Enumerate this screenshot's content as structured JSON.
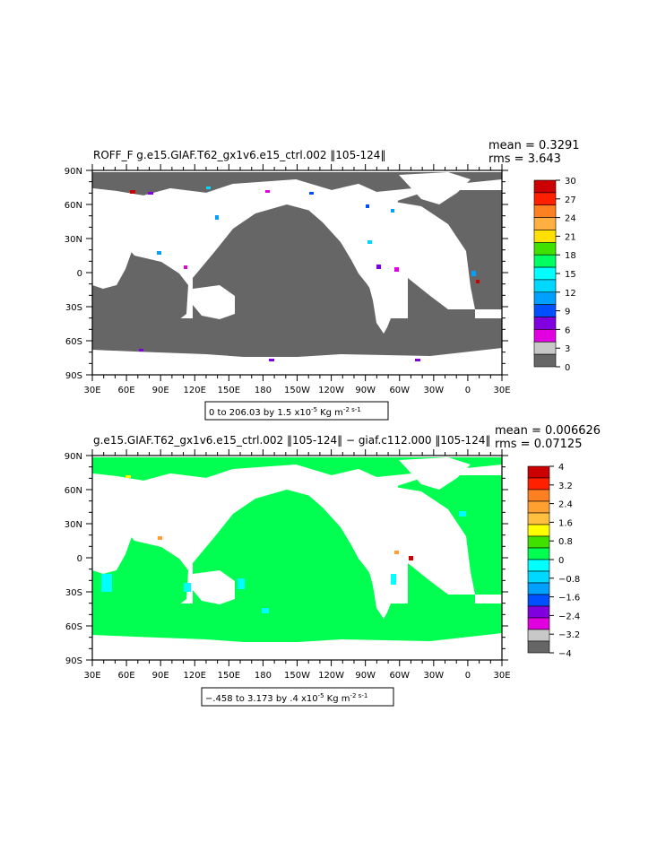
{
  "panels": [
    {
      "title": "ROFF_F g.e15.GIAF.T62_gx1v6.e15_ctrl.002 ‖105-124‖",
      "mean_label": "mean = 0.3291",
      "rms_label": "rms = 3.643",
      "range_label": "0 to 206.03 by 1.5 x10",
      "range_exp": "-5",
      "range_units": "Kg m",
      "range_units_exp": "-2 s-1",
      "ocean_color": "#666666",
      "colorbar": {
        "labels": [
          "30",
          "27",
          "24",
          "21",
          "18",
          "15",
          "12",
          "9",
          "6",
          "3",
          "0"
        ],
        "colors": [
          "#cc0000",
          "#ff2000",
          "#ff8020",
          "#ffb040",
          "#ffe000",
          "#40e000",
          "#00ff60",
          "#00ffff",
          "#00d8ff",
          "#00a0ff",
          "#0050ff",
          "#8000e0",
          "#e000e0",
          "#c8c8c8",
          "#666666"
        ]
      }
    },
    {
      "title": "g.e15.GIAF.T62_gx1v6.e15_ctrl.002 ‖105-124‖ − giaf.c112.000 ‖105-124‖",
      "mean_label": "mean = 0.006626",
      "rms_label": "rms = 0.07125",
      "range_label": "−.458 to 3.173 by .4 x10",
      "range_exp": "-5",
      "range_units": "Kg m",
      "range_units_exp": "-2 s-1",
      "ocean_color": "#00ff50",
      "colorbar": {
        "labels": [
          "4",
          "3.2",
          "2.4",
          "1.6",
          "0.8",
          "0",
          "−0.8",
          "−1.6",
          "−2.4",
          "−3.2",
          "−4"
        ],
        "colors": [
          "#cc0000",
          "#ff2000",
          "#ff8020",
          "#ffa030",
          "#ffc040",
          "#ffff00",
          "#40e000",
          "#00ff50",
          "#00ffff",
          "#00d8ff",
          "#00a0ff",
          "#0050ff",
          "#8000e0",
          "#e000e0",
          "#c8c8c8",
          "#666666"
        ]
      }
    }
  ],
  "axes": {
    "lat_labels": [
      "90N",
      "60N",
      "30N",
      "0",
      "30S",
      "60S",
      "90S"
    ],
    "lon_labels": [
      "30E",
      "60E",
      "90E",
      "120E",
      "150E",
      "180",
      "150W",
      "120W",
      "90W",
      "60W",
      "30W",
      "0",
      "30E"
    ]
  }
}
